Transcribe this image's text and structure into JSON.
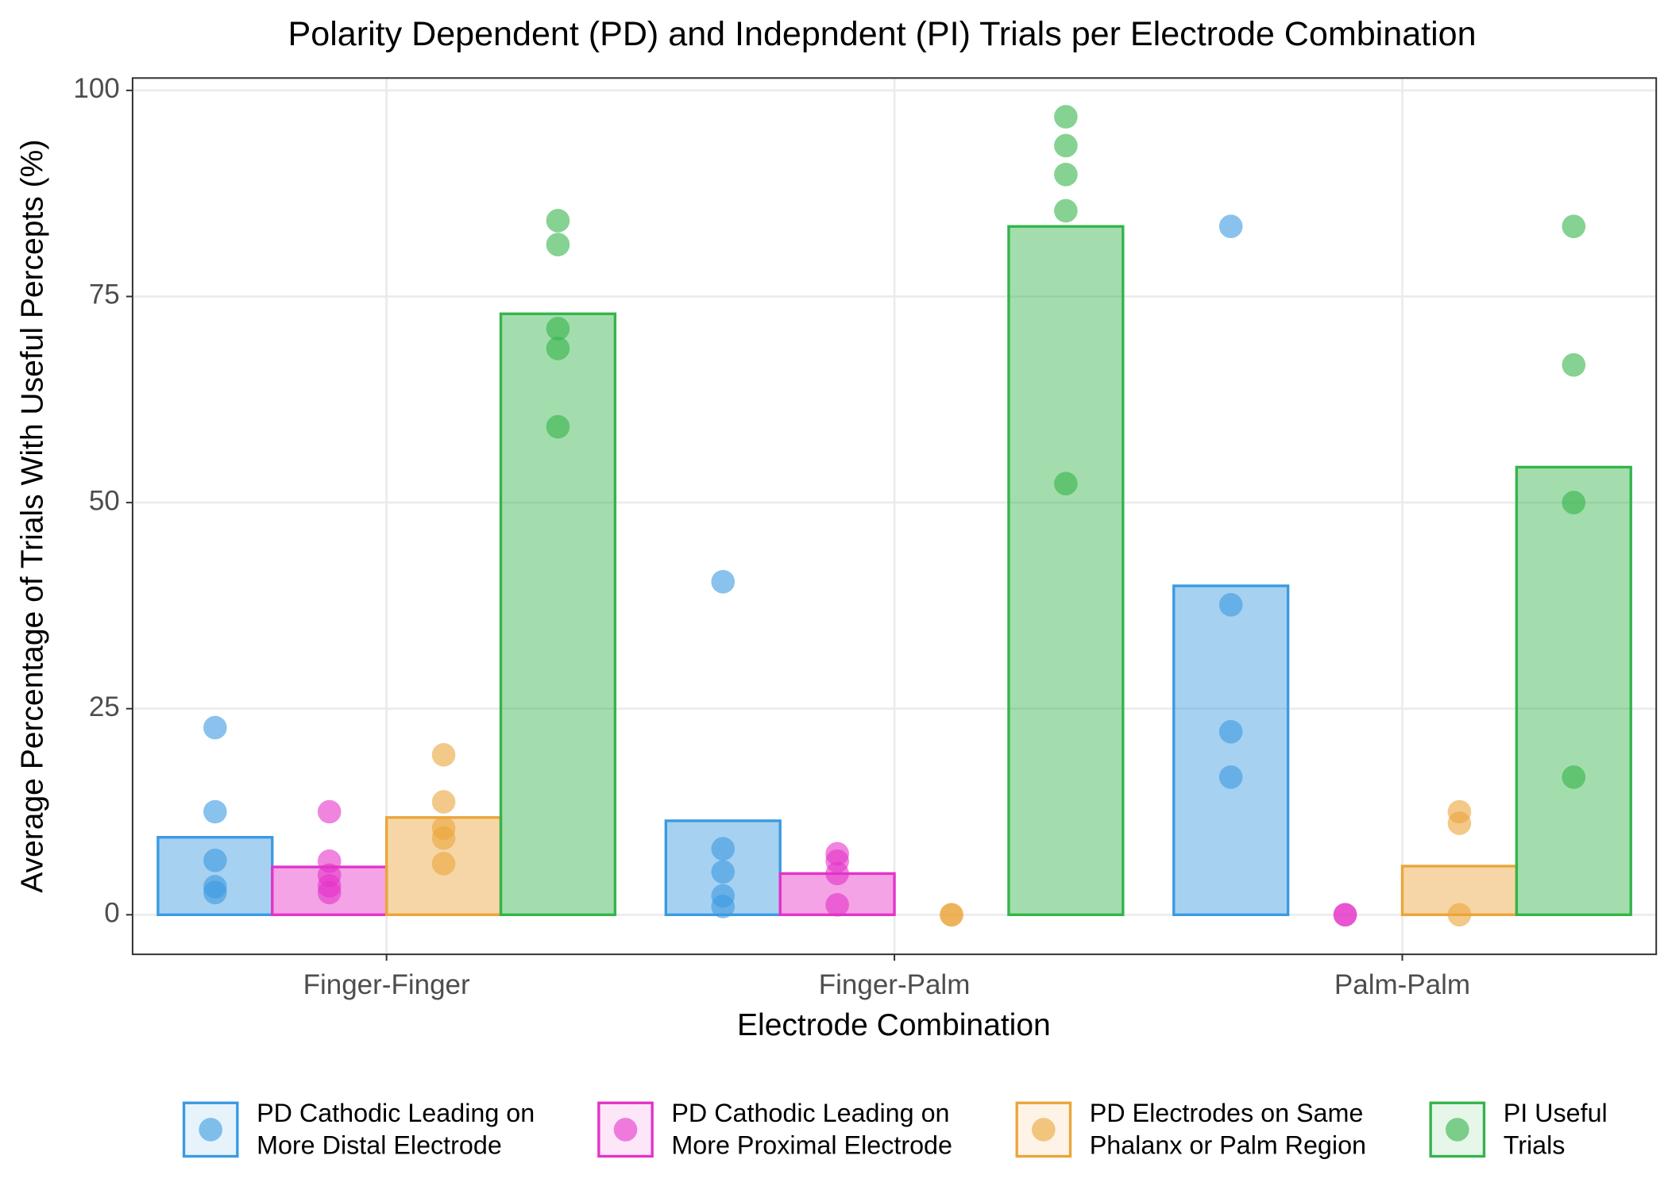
{
  "chart_data": {
    "type": "bar",
    "title": "Polarity Dependent (PD) and Indepndent (PI) Trials per Electrode Combination",
    "x_label": "Electrode Combination",
    "y_label": "Average Percentage of Trials With Useful Percepts (%)",
    "categories": [
      "Finger-Finger",
      "Finger-Palm",
      "Palm-Palm"
    ],
    "ylim": [
      -4.8,
      101.5
    ],
    "yticks": [
      0,
      25,
      50,
      75,
      100
    ],
    "grid": true,
    "legend": "bottom",
    "series": [
      {
        "name": "PD Cathodic Leading on\nMore Distal Electrode",
        "color": "#3b9ae1",
        "values": [
          9.4,
          11.4,
          39.9
        ],
        "points": [
          [
            22.7,
            12.5,
            6.6,
            3.4,
            2.7
          ],
          [
            40.4,
            8.0,
            5.2,
            2.3,
            1.0
          ],
          [
            83.5,
            37.6,
            22.2,
            16.7
          ]
        ]
      },
      {
        "name": "PD Cathodic Leading on\nMore Proximal Electrode",
        "color": "#e433c8",
        "values": [
          5.8,
          5.0,
          0
        ],
        "points": [
          [
            12.5,
            6.5,
            4.8,
            3.5,
            2.7
          ],
          [
            7.4,
            6.5,
            5.0,
            1.2
          ],
          [
            0,
            0
          ]
        ]
      },
      {
        "name": "PD Electrodes on Same\nPhalanx or Palm Region",
        "color": "#eba53a",
        "values": [
          11.8,
          0,
          5.9
        ],
        "points": [
          [
            19.4,
            13.7,
            10.5,
            9.3,
            6.2
          ],
          [
            0,
            0
          ],
          [
            12.5,
            11.1,
            0
          ]
        ]
      },
      {
        "name": "PI Useful\nTrials",
        "color": "#34b44a",
        "values": [
          72.9,
          83.5,
          54.3
        ],
        "points": [
          [
            84.2,
            81.3,
            71.1,
            68.7,
            59.2
          ],
          [
            96.8,
            93.3,
            89.8,
            85.4,
            52.3
          ],
          [
            83.5,
            66.7,
            50,
            16.7
          ]
        ]
      }
    ]
  }
}
